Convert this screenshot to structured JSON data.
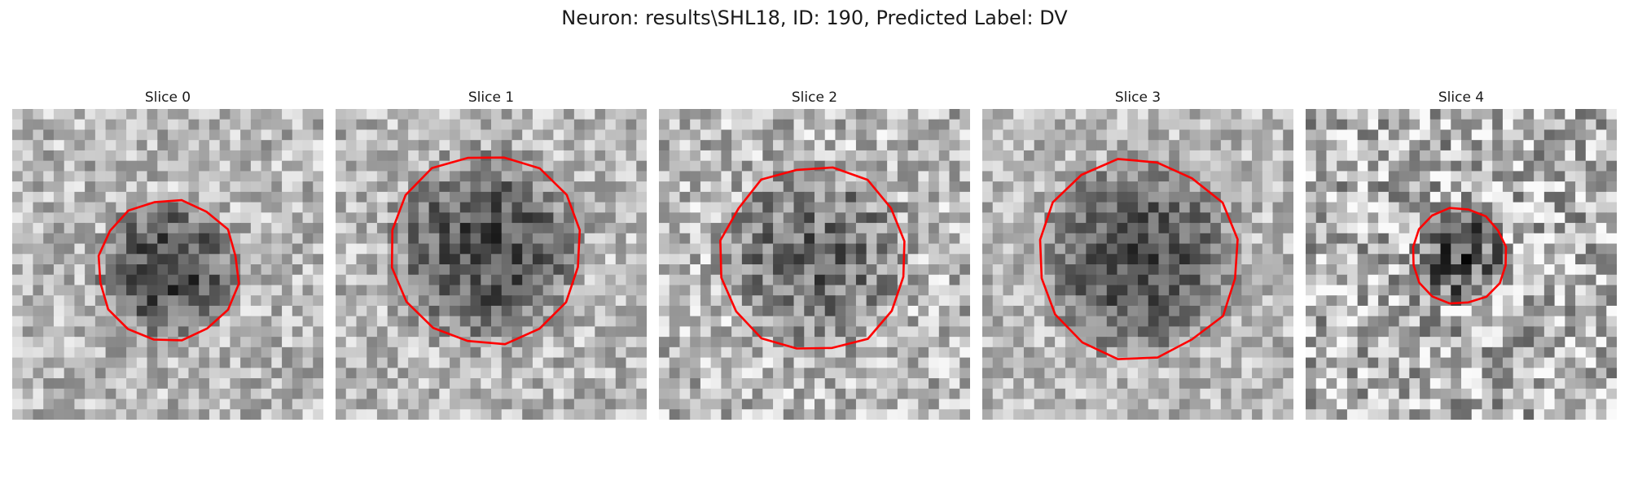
{
  "figure": {
    "title": "Neuron: results\\SHL18, ID: 190, Predicted Label: DV"
  },
  "slices": [
    {
      "title": "Slice 0"
    },
    {
      "title": "Slice 1"
    },
    {
      "title": "Slice 2"
    },
    {
      "title": "Slice 3"
    },
    {
      "title": "Slice 4"
    }
  ],
  "colors": {
    "contour": "#ff0000",
    "background": "#ffffff"
  }
}
